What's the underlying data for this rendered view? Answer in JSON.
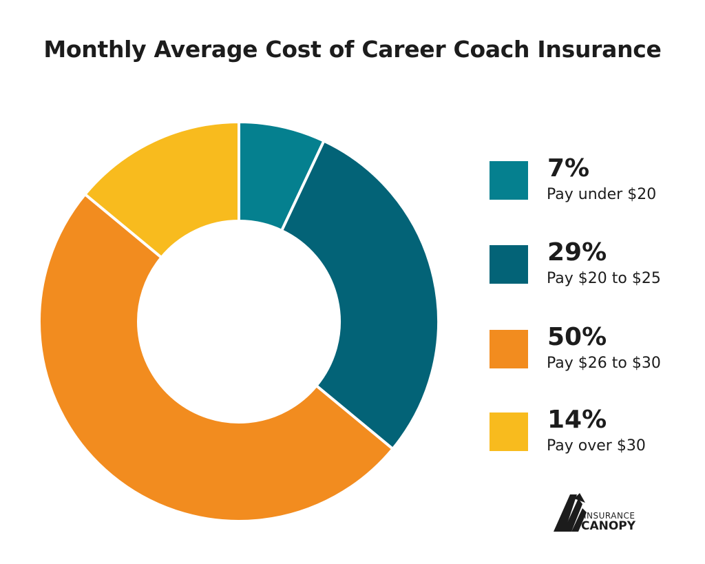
{
  "title": "Monthly Average Cost of Career Coach Insurance",
  "chart_data": {
    "type": "pie",
    "variant": "donut",
    "title": "Monthly Average Cost of Career Coach Insurance",
    "categories": [
      "Pay under $20",
      "Pay $20 to $25",
      "Pay $26 to $30",
      "Pay over $30"
    ],
    "values": [
      7,
      29,
      50,
      14
    ],
    "unit": "%",
    "colors": [
      "#05808f",
      "#036377",
      "#f28c1f",
      "#f8bb1e"
    ],
    "start_angle": "12 o'clock",
    "direction": "clockwise",
    "legend_position": "right"
  },
  "legend": [
    {
      "pct": "7%",
      "label": "Pay under $20",
      "color": "#05808f"
    },
    {
      "pct": "29%",
      "label": "Pay $20 to $25",
      "color": "#036377"
    },
    {
      "pct": "50%",
      "label": "Pay $26 to $30",
      "color": "#f28c1f"
    },
    {
      "pct": "14%",
      "label": "Pay over $30",
      "color": "#f8bb1e"
    }
  ],
  "logo": {
    "line1": "INSURANCE",
    "line2": "CANOPY"
  }
}
